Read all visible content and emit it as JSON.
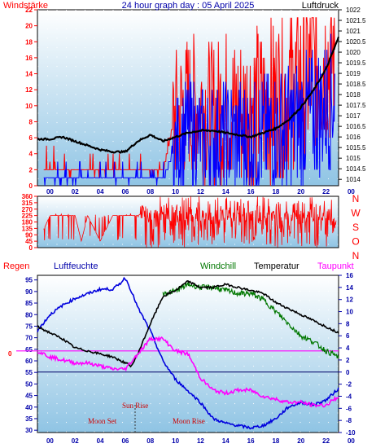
{
  "colors": {
    "wind_speed": "#ff0000",
    "wind_gust": "#0000ff",
    "pressure": "#000000",
    "humidity": "#0000dd",
    "windchill": "#007700",
    "temperature": "#000000",
    "dewpoint": "#ff00ff",
    "bg_top": "#ffffff",
    "bg_bottom": "#8fc4e4",
    "axis_blue": "#0000aa"
  },
  "chart_data": [
    {
      "type": "line",
      "title": "24 hour graph day : 05 April 2025",
      "left_label": "Windstärke",
      "right_label": "Luftdruck",
      "x_ticks": [
        "00",
        "02",
        "04",
        "06",
        "08",
        "10",
        "12",
        "14",
        "16",
        "18",
        "20",
        "22",
        "00"
      ],
      "y_left_ticks": [
        "0",
        "2",
        "4",
        "6",
        "8",
        "10",
        "12",
        "14",
        "16",
        "18",
        "20",
        "22"
      ],
      "y_left_range": [
        0,
        22
      ],
      "y_right_ticks": [
        "1014",
        "1014.5",
        "1015",
        "1015.5",
        "1016",
        "1016.5",
        "1017",
        "1017.5",
        "1018",
        "1018.5",
        "1019",
        "1019.5",
        "1020",
        "1020.5",
        "1021",
        "1021.5",
        "1022"
      ],
      "y_right_range": [
        1013.7,
        1022
      ],
      "series": [
        {
          "key": "speed",
          "x": [
            0,
            1,
            2,
            3,
            4,
            5,
            6,
            7,
            8,
            9,
            10,
            11,
            12,
            13,
            14,
            15,
            16,
            17,
            18,
            19,
            20,
            21,
            22,
            23,
            24
          ],
          "values": [
            2,
            2,
            1.5,
            1.5,
            1.5,
            1.5,
            1.5,
            1.5,
            1.5,
            1.5,
            1.5,
            9,
            10,
            10,
            9,
            10,
            9,
            10,
            10,
            11,
            12,
            13,
            15,
            16,
            17
          ]
        },
        {
          "key": "gust",
          "x": [
            0,
            1,
            2,
            3,
            4,
            5,
            6,
            7,
            8,
            9,
            10,
            11,
            12,
            13,
            14,
            15,
            16,
            17,
            18,
            19,
            20,
            21,
            22,
            23,
            24
          ],
          "values": [
            0.5,
            0.5,
            0.5,
            0.5,
            0.5,
            0.5,
            0.5,
            0.5,
            0.5,
            0.5,
            0.5,
            5,
            7,
            6,
            6,
            6,
            6,
            6,
            6,
            7,
            7,
            8,
            9,
            10,
            12
          ]
        },
        {
          "key": "pressure",
          "x": [
            0,
            1,
            2,
            3,
            4,
            5,
            6,
            7,
            8,
            9,
            10,
            11,
            12,
            13,
            14,
            15,
            16,
            17,
            18,
            19,
            20,
            21,
            22,
            23,
            24
          ],
          "values": [
            1015.9,
            1015.9,
            1016.0,
            1015.8,
            1015.6,
            1015.4,
            1015.3,
            1015.3,
            1015.8,
            1016.1,
            1015.8,
            1016.0,
            1016.2,
            1016.3,
            1016.3,
            1016.2,
            1016.1,
            1016.0,
            1016.2,
            1016.4,
            1016.8,
            1017.4,
            1018.2,
            1019.2,
            1020.7
          ]
        }
      ]
    },
    {
      "type": "line",
      "y_ticks": [
        "0",
        "45",
        "90",
        "135",
        "180",
        "225",
        "270",
        "315",
        "360"
      ],
      "y_range": [
        0,
        360
      ],
      "right_labels": [
        "N",
        "W",
        "S",
        "O",
        "N"
      ],
      "series": [
        {
          "key": "direction",
          "x": [
            0,
            1,
            2,
            3,
            3.5,
            4,
            5,
            6,
            6.5,
            7,
            8,
            9,
            10,
            11,
            12,
            13,
            14,
            15,
            16,
            17,
            18,
            19,
            20,
            21,
            22,
            23,
            24
          ],
          "values": [
            30,
            225,
            225,
            225,
            45,
            225,
            45,
            225,
            225,
            225,
            225,
            270,
            180,
            45,
            225,
            300,
            90,
            225,
            270,
            45,
            225,
            315,
            90,
            270,
            45,
            300,
            90
          ]
        }
      ]
    },
    {
      "type": "line",
      "legend": [
        "Regen",
        "Luftfeuchte",
        "Windchill",
        "Temperatur",
        "Taupunkt"
      ],
      "left_marker": "0",
      "y_left_ticks": [
        "30",
        "35",
        "40",
        "45",
        "50",
        "55",
        "60",
        "65",
        "70",
        "75",
        "80",
        "85",
        "90",
        "95"
      ],
      "y_left_range": [
        29,
        97
      ],
      "y_right_ticks": [
        "-10",
        "-8",
        "-6",
        "-4",
        "-2",
        "0",
        "2",
        "4",
        "6",
        "8",
        "10",
        "12",
        "14",
        "16"
      ],
      "y_right_range": [
        -10,
        16
      ],
      "x_ticks": [
        "00",
        "02",
        "04",
        "06",
        "08",
        "10",
        "12",
        "14",
        "16",
        "18",
        "20",
        "22",
        "00"
      ],
      "annotations": {
        "sun_rise": "Sun Rise",
        "moon_set": "Moon Set",
        "moon_rise": "Moon Rise"
      },
      "series": [
        {
          "key": "humidity",
          "x": [
            0,
            1,
            2,
            3,
            4,
            5,
            6,
            6.5,
            7,
            7.5,
            8,
            9,
            10,
            11,
            12,
            13,
            14,
            15,
            16,
            17,
            18,
            19,
            20,
            21,
            22,
            23,
            24
          ],
          "values": [
            73,
            80,
            84,
            87,
            89,
            91,
            91,
            93,
            96,
            90,
            83,
            73,
            60,
            52,
            47,
            42,
            35,
            33,
            32,
            31,
            32,
            35,
            40,
            42,
            41,
            43,
            48
          ]
        },
        {
          "key": "windchill",
          "x": [
            10,
            11,
            12,
            13,
            14,
            15,
            16,
            17,
            18,
            19,
            20,
            21,
            22,
            23,
            24
          ],
          "values": [
            13.0,
            13.4,
            14.5,
            14.0,
            14.0,
            13.5,
            13.0,
            13.0,
            12.0,
            10.0,
            8.0,
            6.0,
            5.0,
            3.5,
            2.5
          ]
        },
        {
          "key": "temperature",
          "x": [
            0,
            1,
            2,
            3,
            4,
            5,
            6,
            7,
            7.5,
            8,
            9,
            10,
            11,
            12,
            13,
            14,
            15,
            16,
            17,
            18,
            19,
            20,
            21,
            22,
            23,
            24
          ],
          "values": [
            7.5,
            6.5,
            5.5,
            4.0,
            3.5,
            3.0,
            2.5,
            1.5,
            1.0,
            3.0,
            8.0,
            12.5,
            13.5,
            15.0,
            14.0,
            14.0,
            14.5,
            14.0,
            13.5,
            13.0,
            11.5,
            10.5,
            9.5,
            8.5,
            7.5,
            6.5
          ]
        },
        {
          "key": "dewpoint",
          "x": [
            0,
            1,
            2,
            3,
            4,
            5,
            6,
            7,
            8,
            9,
            10,
            11,
            12,
            13,
            14,
            15,
            16,
            17,
            18,
            19,
            20,
            21,
            22,
            23,
            24
          ],
          "values": [
            3.5,
            2.5,
            2.0,
            1.5,
            1.5,
            1.0,
            0.5,
            0.5,
            3.0,
            5.5,
            5.5,
            3.5,
            3.0,
            -1.0,
            -3.0,
            -3.5,
            -3.0,
            -3.0,
            -4.0,
            -4.5,
            -5.0,
            -5.0,
            -5.5,
            -5.5,
            -4.0
          ]
        }
      ]
    }
  ]
}
